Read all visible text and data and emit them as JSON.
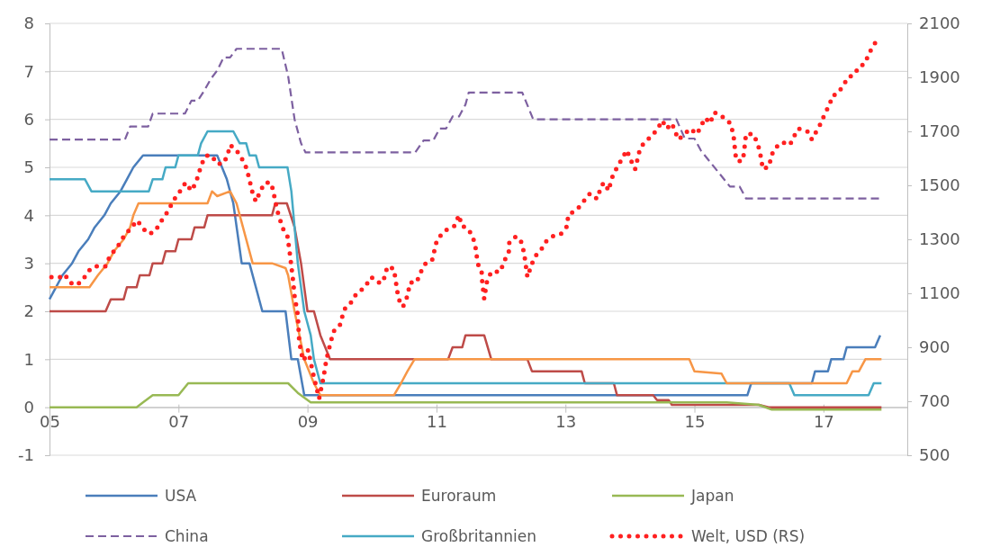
{
  "chart_data": {
    "type": "line",
    "xlim": [
      5,
      18.3
    ],
    "xticks": [
      {
        "value": 5,
        "label": "05"
      },
      {
        "value": 7,
        "label": "07"
      },
      {
        "value": 9,
        "label": "09"
      },
      {
        "value": 11,
        "label": "11"
      },
      {
        "value": 13,
        "label": "13"
      },
      {
        "value": 15,
        "label": "15"
      },
      {
        "value": 17,
        "label": "17"
      }
    ],
    "ylim": [
      -1,
      8
    ],
    "yticks": [
      -1,
      0,
      1,
      2,
      3,
      4,
      5,
      6,
      7,
      8
    ],
    "y2lim": [
      500,
      2100
    ],
    "y2ticks": [
      500,
      700,
      900,
      1100,
      1300,
      1500,
      1700,
      1900,
      2100
    ],
    "grid": "y",
    "legend": "bottom",
    "series": [
      {
        "name": "USA",
        "color": "#4a7ebb",
        "line_style": "solid",
        "x": [
          5,
          5.1,
          5.2,
          5.35,
          5.45,
          5.6,
          5.7,
          5.85,
          5.95,
          6.1,
          6.2,
          6.3,
          6.45,
          7.6,
          7.75,
          7.85,
          7.98,
          8.1,
          8.3,
          8.66,
          8.75,
          8.85,
          8.95,
          15.82,
          15.88,
          16.82,
          16.87,
          17.07,
          17.12,
          17.31,
          17.36,
          17.8,
          17.88
        ],
        "values": [
          2.25,
          2.5,
          2.75,
          3,
          3.25,
          3.5,
          3.75,
          4,
          4.25,
          4.5,
          4.75,
          5,
          5.25,
          5.25,
          4.75,
          4.25,
          3,
          3,
          2,
          2,
          1,
          1,
          0.25,
          0.25,
          0.5,
          0.5,
          0.75,
          0.75,
          1,
          1,
          1.25,
          1.25,
          1.5
        ]
      },
      {
        "name": "Euroraum",
        "color": "#be4b48",
        "line_style": "solid",
        "x": [
          5,
          5.87,
          5.95,
          6.15,
          6.2,
          6.35,
          6.4,
          6.55,
          6.6,
          6.75,
          6.8,
          6.95,
          7.0,
          7.2,
          7.25,
          7.4,
          7.45,
          8.45,
          8.5,
          8.68,
          8.8,
          8.9,
          9.0,
          9.1,
          9.2,
          9.35,
          11.18,
          11.25,
          11.4,
          11.45,
          11.74,
          11.85,
          12.41,
          12.48,
          13.25,
          13.3,
          13.75,
          13.8,
          14.36,
          14.42,
          14.6,
          14.65,
          16.0,
          16.15,
          17.9
        ],
        "values": [
          2,
          2,
          2.25,
          2.25,
          2.5,
          2.5,
          2.75,
          2.75,
          3,
          3,
          3.25,
          3.25,
          3.5,
          3.5,
          3.75,
          3.75,
          4,
          4,
          4.25,
          4.25,
          3.75,
          3,
          2,
          2,
          1.5,
          1,
          1,
          1.25,
          1.25,
          1.5,
          1.5,
          1,
          1,
          0.75,
          0.75,
          0.5,
          0.5,
          0.25,
          0.25,
          0.15,
          0.15,
          0.05,
          0.05,
          0,
          0
        ]
      },
      {
        "name": "Japan",
        "color": "#98b954",
        "line_style": "solid",
        "x": [
          5,
          6.35,
          6.45,
          6.6,
          7.0,
          7.15,
          8.7,
          8.85,
          9.05,
          15.5,
          16.0,
          16.2,
          17.9
        ],
        "values": [
          0,
          0,
          0.1,
          0.25,
          0.25,
          0.5,
          0.5,
          0.3,
          0.1,
          0.1,
          0.05,
          -0.05,
          -0.05
        ]
      },
      {
        "name": "China",
        "color": "#7d60a0",
        "line_style": "dashed",
        "x": [
          5,
          6.17,
          6.25,
          6.53,
          6.6,
          7.1,
          7.2,
          7.3,
          7.4,
          7.5,
          7.6,
          7.7,
          7.8,
          7.9,
          8.6,
          8.7,
          8.8,
          8.9,
          8.97,
          10.67,
          10.8,
          10.95,
          11.05,
          11.15,
          11.25,
          11.35,
          11.45,
          11.5,
          12.33,
          12.5,
          14.72,
          14.85,
          15.0,
          15.1,
          15.25,
          15.4,
          15.55,
          15.7,
          15.8,
          17.9
        ],
        "values": [
          5.58,
          5.58,
          5.85,
          5.85,
          6.12,
          6.12,
          6.39,
          6.39,
          6.6,
          6.84,
          7.02,
          7.29,
          7.29,
          7.47,
          7.47,
          6.9,
          6.0,
          5.5,
          5.31,
          5.31,
          5.56,
          5.56,
          5.81,
          5.81,
          6.06,
          6.06,
          6.31,
          6.56,
          6.56,
          6.0,
          6.0,
          5.6,
          5.6,
          5.35,
          5.1,
          4.85,
          4.6,
          4.6,
          4.35,
          4.35
        ]
      },
      {
        "name": "Großbritannien",
        "color": "#46aac5",
        "line_style": "solid",
        "x": [
          5,
          5.55,
          5.65,
          6.54,
          6.6,
          6.75,
          6.8,
          6.95,
          7.0,
          7.3,
          7.35,
          7.45,
          7.85,
          7.95,
          8.05,
          8.1,
          8.2,
          8.25,
          8.69,
          8.75,
          8.85,
          8.95,
          9.05,
          9.1,
          9.2,
          16.47,
          16.55,
          17.7,
          17.78,
          17.9
        ],
        "values": [
          4.75,
          4.75,
          4.5,
          4.5,
          4.75,
          4.75,
          5,
          5,
          5.25,
          5.25,
          5.5,
          5.75,
          5.75,
          5.5,
          5.5,
          5.25,
          5.25,
          5,
          5,
          4.5,
          3,
          2,
          1.5,
          1,
          0.5,
          0.5,
          0.25,
          0.25,
          0.5,
          0.5
        ]
      },
      {
        "color": "#f79646",
        "line_style": "solid",
        "x": [
          5,
          5.62,
          5.75,
          5.9,
          6.0,
          6.15,
          6.25,
          6.3,
          6.38,
          7.45,
          7.52,
          7.6,
          7.8,
          7.9,
          8.0,
          8.15,
          8.45,
          8.66,
          8.7,
          8.8,
          8.95,
          9.1,
          9.2,
          10.34,
          10.45,
          10.55,
          10.66,
          14.92,
          15.0,
          15.42,
          15.5,
          17.36,
          17.45,
          17.55,
          17.65,
          17.9
        ],
        "values": [
          2.5,
          2.5,
          2.75,
          3,
          3.25,
          3.5,
          3.75,
          4,
          4.25,
          4.25,
          4.5,
          4.4,
          4.5,
          4.25,
          3.75,
          3,
          3,
          2.9,
          2.75,
          2,
          1,
          0.5,
          0.25,
          0.25,
          0.5,
          0.75,
          1,
          1,
          0.75,
          0.7,
          0.5,
          0.5,
          0.75,
          0.75,
          1,
          1
        ]
      },
      {
        "name": "Welt, USD (RS)",
        "color": "#ff2020",
        "line_style": "dotted",
        "axis": "y2",
        "x": [
          5.03,
          5.17,
          5.24,
          5.31,
          5.42,
          5.52,
          5.59,
          5.7,
          5.87,
          5.94,
          6.05,
          6.15,
          6.29,
          6.36,
          6.45,
          6.54,
          6.64,
          6.71,
          6.8,
          6.87,
          6.94,
          7.03,
          7.11,
          7.2,
          7.27,
          7.36,
          7.43,
          7.52,
          7.59,
          7.69,
          7.76,
          7.8,
          7.9,
          8.03,
          8.08,
          8.15,
          8.2,
          8.27,
          8.34,
          8.43,
          8.47,
          8.5,
          8.55,
          8.62,
          8.69,
          8.72,
          8.75,
          8.78,
          8.8,
          8.85,
          8.87,
          8.9,
          8.94,
          9.01,
          9.08,
          9.18,
          9.25,
          9.29,
          9.36,
          9.41,
          9.5,
          9.57,
          9.69,
          9.76,
          9.88,
          9.99,
          10.09,
          10.17,
          10.24,
          10.34,
          10.41,
          10.48,
          10.55,
          10.59,
          10.69,
          10.76,
          10.83,
          10.93,
          11.0,
          11.08,
          11.18,
          11.28,
          11.35,
          11.39,
          11.49,
          11.56,
          11.6,
          11.64,
          11.7,
          11.71,
          11.74,
          11.78,
          11.85,
          11.99,
          12.05,
          12.12,
          12.13,
          12.23,
          12.3,
          12.34,
          12.37,
          12.41,
          12.48,
          12.54,
          12.62,
          12.69,
          12.79,
          12.93,
          13.03,
          13.04,
          13.18,
          13.28,
          13.38,
          13.49,
          13.56,
          13.6,
          13.67,
          13.7,
          13.74,
          13.81,
          13.88,
          13.95,
          14.02,
          14.08,
          14.12,
          14.15,
          14.22,
          14.33,
          14.43,
          14.5,
          14.57,
          14.65,
          14.75,
          14.85,
          14.93,
          15.04,
          15.1,
          15.17,
          15.24,
          15.31,
          15.41,
          15.49,
          15.56,
          15.6,
          15.62,
          15.63,
          15.66,
          15.74,
          15.77,
          15.78,
          15.8,
          15.91,
          15.97,
          16.01,
          16.04,
          16.06,
          16.16,
          16.19,
          16.26,
          16.36,
          16.48,
          16.54,
          16.61,
          16.75,
          16.82,
          16.89,
          16.96,
          17.03,
          17.1,
          17.13,
          17.22,
          17.31,
          17.38,
          17.48,
          17.55,
          17.64,
          17.71,
          17.78,
          17.87
        ],
        "values": [
          1160,
          1160,
          1170,
          1140,
          1130,
          1150,
          1180,
          1200,
          1200,
          1240,
          1270,
          1310,
          1350,
          1370,
          1340,
          1320,
          1330,
          1360,
          1390,
          1420,
          1450,
          1480,
          1510,
          1480,
          1510,
          1580,
          1610,
          1610,
          1580,
          1580,
          1610,
          1650,
          1630,
          1580,
          1540,
          1470,
          1440,
          1480,
          1510,
          1510,
          1480,
          1440,
          1390,
          1340,
          1310,
          1260,
          1200,
          1140,
          1090,
          1020,
          930,
          880,
          850,
          890,
          810,
          710,
          790,
          850,
          920,
          960,
          980,
          1040,
          1070,
          1100,
          1120,
          1160,
          1140,
          1140,
          1200,
          1190,
          1080,
          1050,
          1090,
          1140,
          1140,
          1180,
          1210,
          1220,
          1290,
          1320,
          1340,
          1350,
          1390,
          1350,
          1340,
          1310,
          1280,
          1210,
          1180,
          1140,
          1080,
          1140,
          1180,
          1180,
          1220,
          1250,
          1290,
          1310,
          1300,
          1270,
          1230,
          1160,
          1210,
          1240,
          1260,
          1290,
          1310,
          1320,
          1350,
          1390,
          1410,
          1440,
          1470,
          1450,
          1500,
          1510,
          1480,
          1510,
          1540,
          1570,
          1600,
          1630,
          1590,
          1560,
          1600,
          1630,
          1660,
          1680,
          1710,
          1740,
          1710,
          1730,
          1670,
          1690,
          1710,
          1690,
          1720,
          1750,
          1730,
          1770,
          1760,
          1740,
          1730,
          1690,
          1660,
          1620,
          1590,
          1590,
          1620,
          1650,
          1690,
          1690,
          1660,
          1630,
          1590,
          1560,
          1570,
          1610,
          1640,
          1660,
          1650,
          1680,
          1710,
          1700,
          1670,
          1700,
          1730,
          1770,
          1800,
          1830,
          1840,
          1870,
          1900,
          1910,
          1940,
          1950,
          1990,
          2020,
          2050
        ]
      }
    ]
  }
}
